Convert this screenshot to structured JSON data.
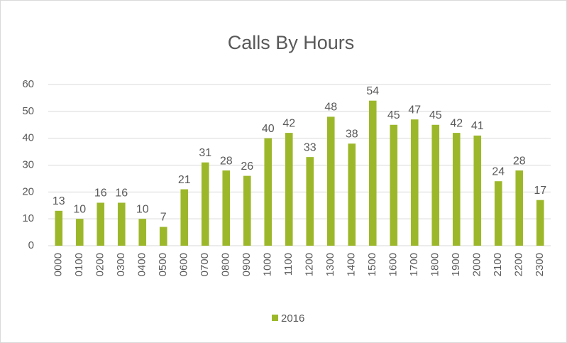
{
  "chart_data": {
    "type": "bar",
    "title": "Calls By Hours",
    "categories": [
      "0000",
      "0100",
      "0200",
      "0300",
      "0400",
      "0500",
      "0600",
      "0700",
      "0800",
      "0900",
      "1000",
      "1100",
      "1200",
      "1300",
      "1400",
      "1500",
      "1600",
      "1700",
      "1800",
      "1900",
      "2000",
      "2100",
      "2200",
      "2300"
    ],
    "series": [
      {
        "name": "2016",
        "color": "#9cb82a",
        "values": [
          13,
          10,
          16,
          16,
          10,
          7,
          21,
          31,
          28,
          26,
          40,
          42,
          33,
          48,
          38,
          54,
          45,
          47,
          45,
          42,
          41,
          24,
          28,
          17
        ]
      }
    ],
    "ylim": [
      0,
      60
    ],
    "yticks": [
      0,
      10,
      20,
      30,
      40,
      50,
      60
    ],
    "grid": true,
    "legend": "bottom"
  }
}
